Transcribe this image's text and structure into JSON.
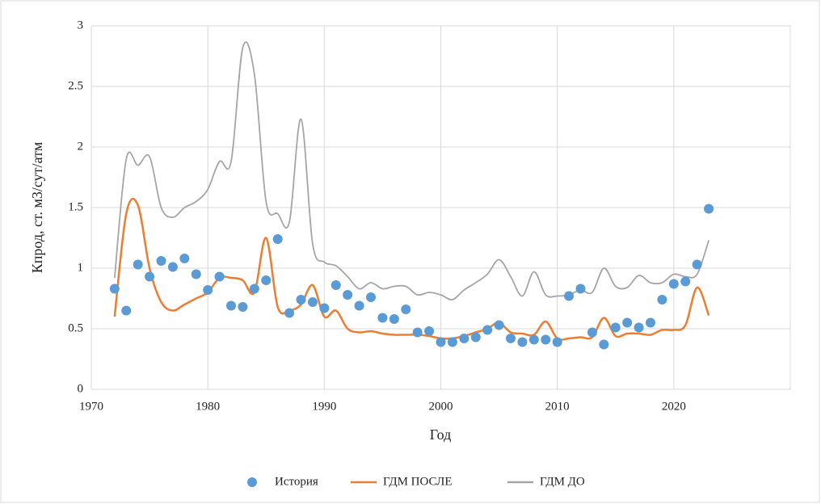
{
  "chart_data": {
    "type": "line",
    "x_label": "Год",
    "y_label": "Кпрод, ст. м3/сут/атм",
    "x": [
      1972,
      1973,
      1974,
      1975,
      1976,
      1977,
      1978,
      1979,
      1980,
      1981,
      1982,
      1983,
      1984,
      1985,
      1986,
      1987,
      1988,
      1989,
      1990,
      1991,
      1992,
      1993,
      1994,
      1995,
      1996,
      1997,
      1998,
      1999,
      2000,
      2001,
      2002,
      2003,
      2004,
      2005,
      2006,
      2007,
      2008,
      2009,
      2010,
      2011,
      2012,
      2013,
      2014,
      2015,
      2016,
      2017,
      2018,
      2019,
      2020,
      2021,
      2022,
      2023
    ],
    "series": [
      {
        "name": "История",
        "type": "scatter",
        "color": "#5b9bd5",
        "values": [
          0.83,
          0.65,
          1.03,
          0.93,
          1.06,
          1.01,
          1.08,
          0.95,
          0.82,
          0.93,
          0.69,
          0.68,
          0.83,
          0.9,
          1.24,
          0.63,
          0.74,
          0.72,
          0.67,
          0.86,
          0.78,
          0.69,
          0.76,
          0.59,
          0.58,
          0.66,
          0.47,
          0.48,
          0.39,
          0.39,
          0.42,
          0.43,
          0.49,
          0.53,
          0.42,
          0.39,
          0.41,
          0.41,
          0.39,
          0.77,
          0.83,
          0.47,
          0.37,
          0.51,
          0.55,
          0.51,
          0.55,
          0.74,
          0.87,
          0.89,
          1.03,
          1.49
        ]
      },
      {
        "name": "ГДМ ПОСЛЕ",
        "type": "line",
        "color": "#ed7d31",
        "values": [
          0.6,
          1.45,
          1.52,
          1.0,
          0.72,
          0.65,
          0.7,
          0.75,
          0.8,
          0.92,
          0.92,
          0.9,
          0.8,
          1.25,
          0.68,
          0.65,
          0.7,
          0.86,
          0.6,
          0.65,
          0.5,
          0.47,
          0.48,
          0.46,
          0.45,
          0.45,
          0.45,
          0.44,
          0.42,
          0.42,
          0.44,
          0.47,
          0.5,
          0.55,
          0.47,
          0.46,
          0.45,
          0.56,
          0.42,
          0.42,
          0.43,
          0.43,
          0.59,
          0.44,
          0.46,
          0.46,
          0.45,
          0.49,
          0.49,
          0.53,
          0.84,
          0.61
        ]
      },
      {
        "name": "ГДМ ДО",
        "type": "line",
        "color": "#a5a5a5",
        "values": [
          0.92,
          1.9,
          1.85,
          1.92,
          1.5,
          1.42,
          1.5,
          1.55,
          1.65,
          1.88,
          1.88,
          2.82,
          2.6,
          1.55,
          1.45,
          1.38,
          2.23,
          1.2,
          1.05,
          1.02,
          0.93,
          0.83,
          0.88,
          0.83,
          0.85,
          0.85,
          0.78,
          0.8,
          0.78,
          0.74,
          0.82,
          0.88,
          0.95,
          1.07,
          0.93,
          0.77,
          0.97,
          0.78,
          0.77,
          0.78,
          0.82,
          0.8,
          1.0,
          0.85,
          0.84,
          0.94,
          0.88,
          0.88,
          0.95,
          0.93,
          0.95,
          1.23
        ]
      }
    ],
    "xlim": [
      1970,
      2030
    ],
    "xticks": [
      1970,
      1980,
      1990,
      2000,
      2010,
      2020
    ],
    "ylim": [
      0,
      3
    ],
    "yticks": [
      0,
      0.5,
      1,
      1.5,
      2,
      2.5,
      3
    ],
    "grid": true,
    "smooth": true,
    "legend": "bottom"
  }
}
